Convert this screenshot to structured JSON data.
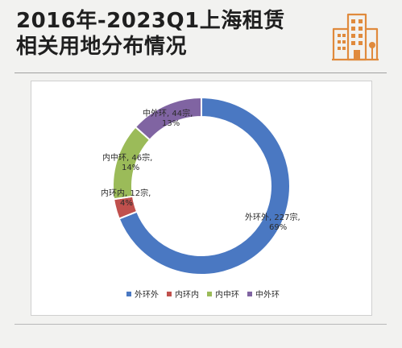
{
  "header": {
    "title_line1": "2016年-2023Q1上海租赁",
    "title_line2": "相关用地分布情况",
    "icon": "building-icon",
    "accent_color": "#e08a3c"
  },
  "chart_data": {
    "type": "pie",
    "donut": true,
    "categories": [
      "外环外",
      "内环内",
      "内中环",
      "中外环"
    ],
    "values": [
      227,
      12,
      46,
      44
    ],
    "percent_labels": [
      "69%",
      "4%",
      "14%",
      "13%"
    ],
    "data_labels": [
      [
        "外环外, 227宗,",
        "69%"
      ],
      [
        "内环内, 12宗,",
        "4%"
      ],
      [
        "内中环, 46宗,",
        "14%"
      ],
      [
        "中外环, 44宗,",
        "13%"
      ]
    ],
    "colors": [
      "#4a78c2",
      "#c0504d",
      "#9bbb59",
      "#8064a2"
    ],
    "legend_position": "bottom"
  }
}
